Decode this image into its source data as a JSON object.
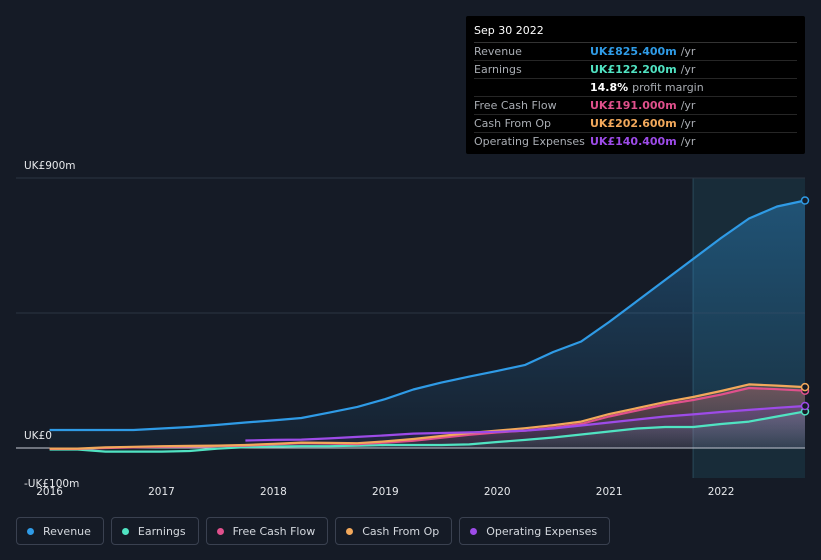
{
  "tooltip": {
    "date": "Sep 30 2022",
    "rows": [
      {
        "label": "Revenue",
        "value": "UK£825.400m",
        "unit": "/yr",
        "color": "#2f9be6"
      },
      {
        "label": "Earnings",
        "value": "UK£122.200m",
        "unit": "/yr",
        "color": "#50e3c2"
      },
      {
        "label": "",
        "value": "14.8%",
        "unit": "profit margin",
        "color": "#ffffff"
      },
      {
        "label": "Free Cash Flow",
        "value": "UK£191.000m",
        "unit": "/yr",
        "color": "#e0508c"
      },
      {
        "label": "Cash From Op",
        "value": "UK£202.600m",
        "unit": "/yr",
        "color": "#f2a85b"
      },
      {
        "label": "Operating Expenses",
        "value": "UK£140.400m",
        "unit": "/yr",
        "color": "#9d4be8"
      }
    ]
  },
  "colors": {
    "background": "#151b26",
    "revenue": "#2f9be6",
    "earnings": "#50e3c2",
    "free_cash_flow": "#e0508c",
    "cash_from_op": "#f2a85b",
    "operating_expenses": "#9d4be8"
  },
  "chart_data": {
    "type": "area",
    "title": "",
    "xlabel": "",
    "ylabel": "",
    "ylim": [
      -100,
      900
    ],
    "y_tick_labels": [
      "UK£900m",
      "UK£0",
      "-UK£100m"
    ],
    "x_tick_labels": [
      "2016",
      "2017",
      "2018",
      "2019",
      "2020",
      "2021",
      "2022"
    ],
    "x_ticks": [
      2016,
      2017,
      2018,
      2019,
      2020,
      2021,
      2022
    ],
    "xlim": [
      2015.7,
      2022.75
    ],
    "highlight_range": [
      2021.75,
      2022.75
    ],
    "legend_position": "bottom",
    "series": [
      {
        "name": "Revenue",
        "key": "revenue",
        "x": [
          2016.0,
          2016.25,
          2016.5,
          2016.75,
          2017.0,
          2017.25,
          2017.5,
          2017.75,
          2018.0,
          2018.25,
          2018.5,
          2018.75,
          2019.0,
          2019.25,
          2019.5,
          2019.75,
          2020.0,
          2020.25,
          2020.5,
          2020.75,
          2021.0,
          2021.25,
          2021.5,
          2021.75,
          2022.0,
          2022.25,
          2022.5,
          2022.75
        ],
        "values": [
          60,
          60,
          60,
          60,
          65,
          70,
          77,
          85,
          92,
          100,
          118,
          137,
          163,
          195,
          218,
          238,
          257,
          277,
          320,
          355,
          420,
          490,
          560,
          630,
          700,
          765,
          805,
          825
        ]
      },
      {
        "name": "Earnings",
        "key": "earnings",
        "x": [
          2016.0,
          2016.25,
          2016.5,
          2016.75,
          2017.0,
          2017.25,
          2017.5,
          2017.75,
          2018.0,
          2018.25,
          2018.5,
          2018.75,
          2019.0,
          2019.25,
          2019.5,
          2019.75,
          2020.0,
          2020.25,
          2020.5,
          2020.75,
          2021.0,
          2021.25,
          2021.5,
          2021.75,
          2022.0,
          2022.25,
          2022.5,
          2022.75
        ],
        "values": [
          -5,
          -5,
          -12,
          -12,
          -12,
          -10,
          -2,
          3,
          5,
          6,
          6,
          8,
          10,
          10,
          10,
          12,
          20,
          27,
          35,
          45,
          55,
          65,
          70,
          70,
          80,
          88,
          105,
          122
        ]
      },
      {
        "name": "Free Cash Flow",
        "key": "free_cash_flow",
        "x": [
          2016.0,
          2016.25,
          2016.5,
          2016.75,
          2017.0,
          2017.25,
          2017.5,
          2017.75,
          2018.0,
          2018.25,
          2018.5,
          2018.75,
          2019.0,
          2019.25,
          2019.5,
          2019.75,
          2020.0,
          2020.25,
          2020.5,
          2020.75,
          2021.0,
          2021.25,
          2021.5,
          2021.75,
          2022.0,
          2022.25,
          2022.5,
          2022.75
        ],
        "values": [
          -3,
          -3,
          0,
          2,
          4,
          5,
          6,
          8,
          12,
          16,
          15,
          13,
          18,
          24,
          34,
          44,
          52,
          58,
          68,
          80,
          105,
          125,
          145,
          160,
          178,
          200,
          196,
          191
        ]
      },
      {
        "name": "Cash From Op",
        "key": "cash_from_op",
        "x": [
          2016.0,
          2016.25,
          2016.5,
          2016.75,
          2017.0,
          2017.25,
          2017.5,
          2017.75,
          2018.0,
          2018.25,
          2018.5,
          2018.75,
          2019.0,
          2019.25,
          2019.5,
          2019.75,
          2020.0,
          2020.25,
          2020.5,
          2020.75,
          2021.0,
          2021.25,
          2021.5,
          2021.75,
          2022.0,
          2022.25,
          2022.5,
          2022.75
        ],
        "values": [
          -2,
          -2,
          2,
          4,
          6,
          7,
          8,
          10,
          14,
          18,
          17,
          16,
          22,
          30,
          40,
          50,
          58,
          66,
          76,
          88,
          113,
          133,
          153,
          170,
          190,
          212,
          208,
          203
        ]
      },
      {
        "name": "Operating Expenses",
        "key": "operating_expenses",
        "x": [
          2017.75,
          2018.0,
          2018.25,
          2018.5,
          2018.75,
          2019.0,
          2019.25,
          2019.5,
          2019.75,
          2020.0,
          2020.25,
          2020.5,
          2020.75,
          2021.0,
          2021.25,
          2021.5,
          2021.75,
          2022.0,
          2022.25,
          2022.5,
          2022.75
        ],
        "values": [
          25,
          27,
          28,
          32,
          37,
          42,
          48,
          50,
          52,
          54,
          58,
          65,
          75,
          85,
          95,
          105,
          112,
          120,
          127,
          134,
          140
        ]
      }
    ]
  }
}
